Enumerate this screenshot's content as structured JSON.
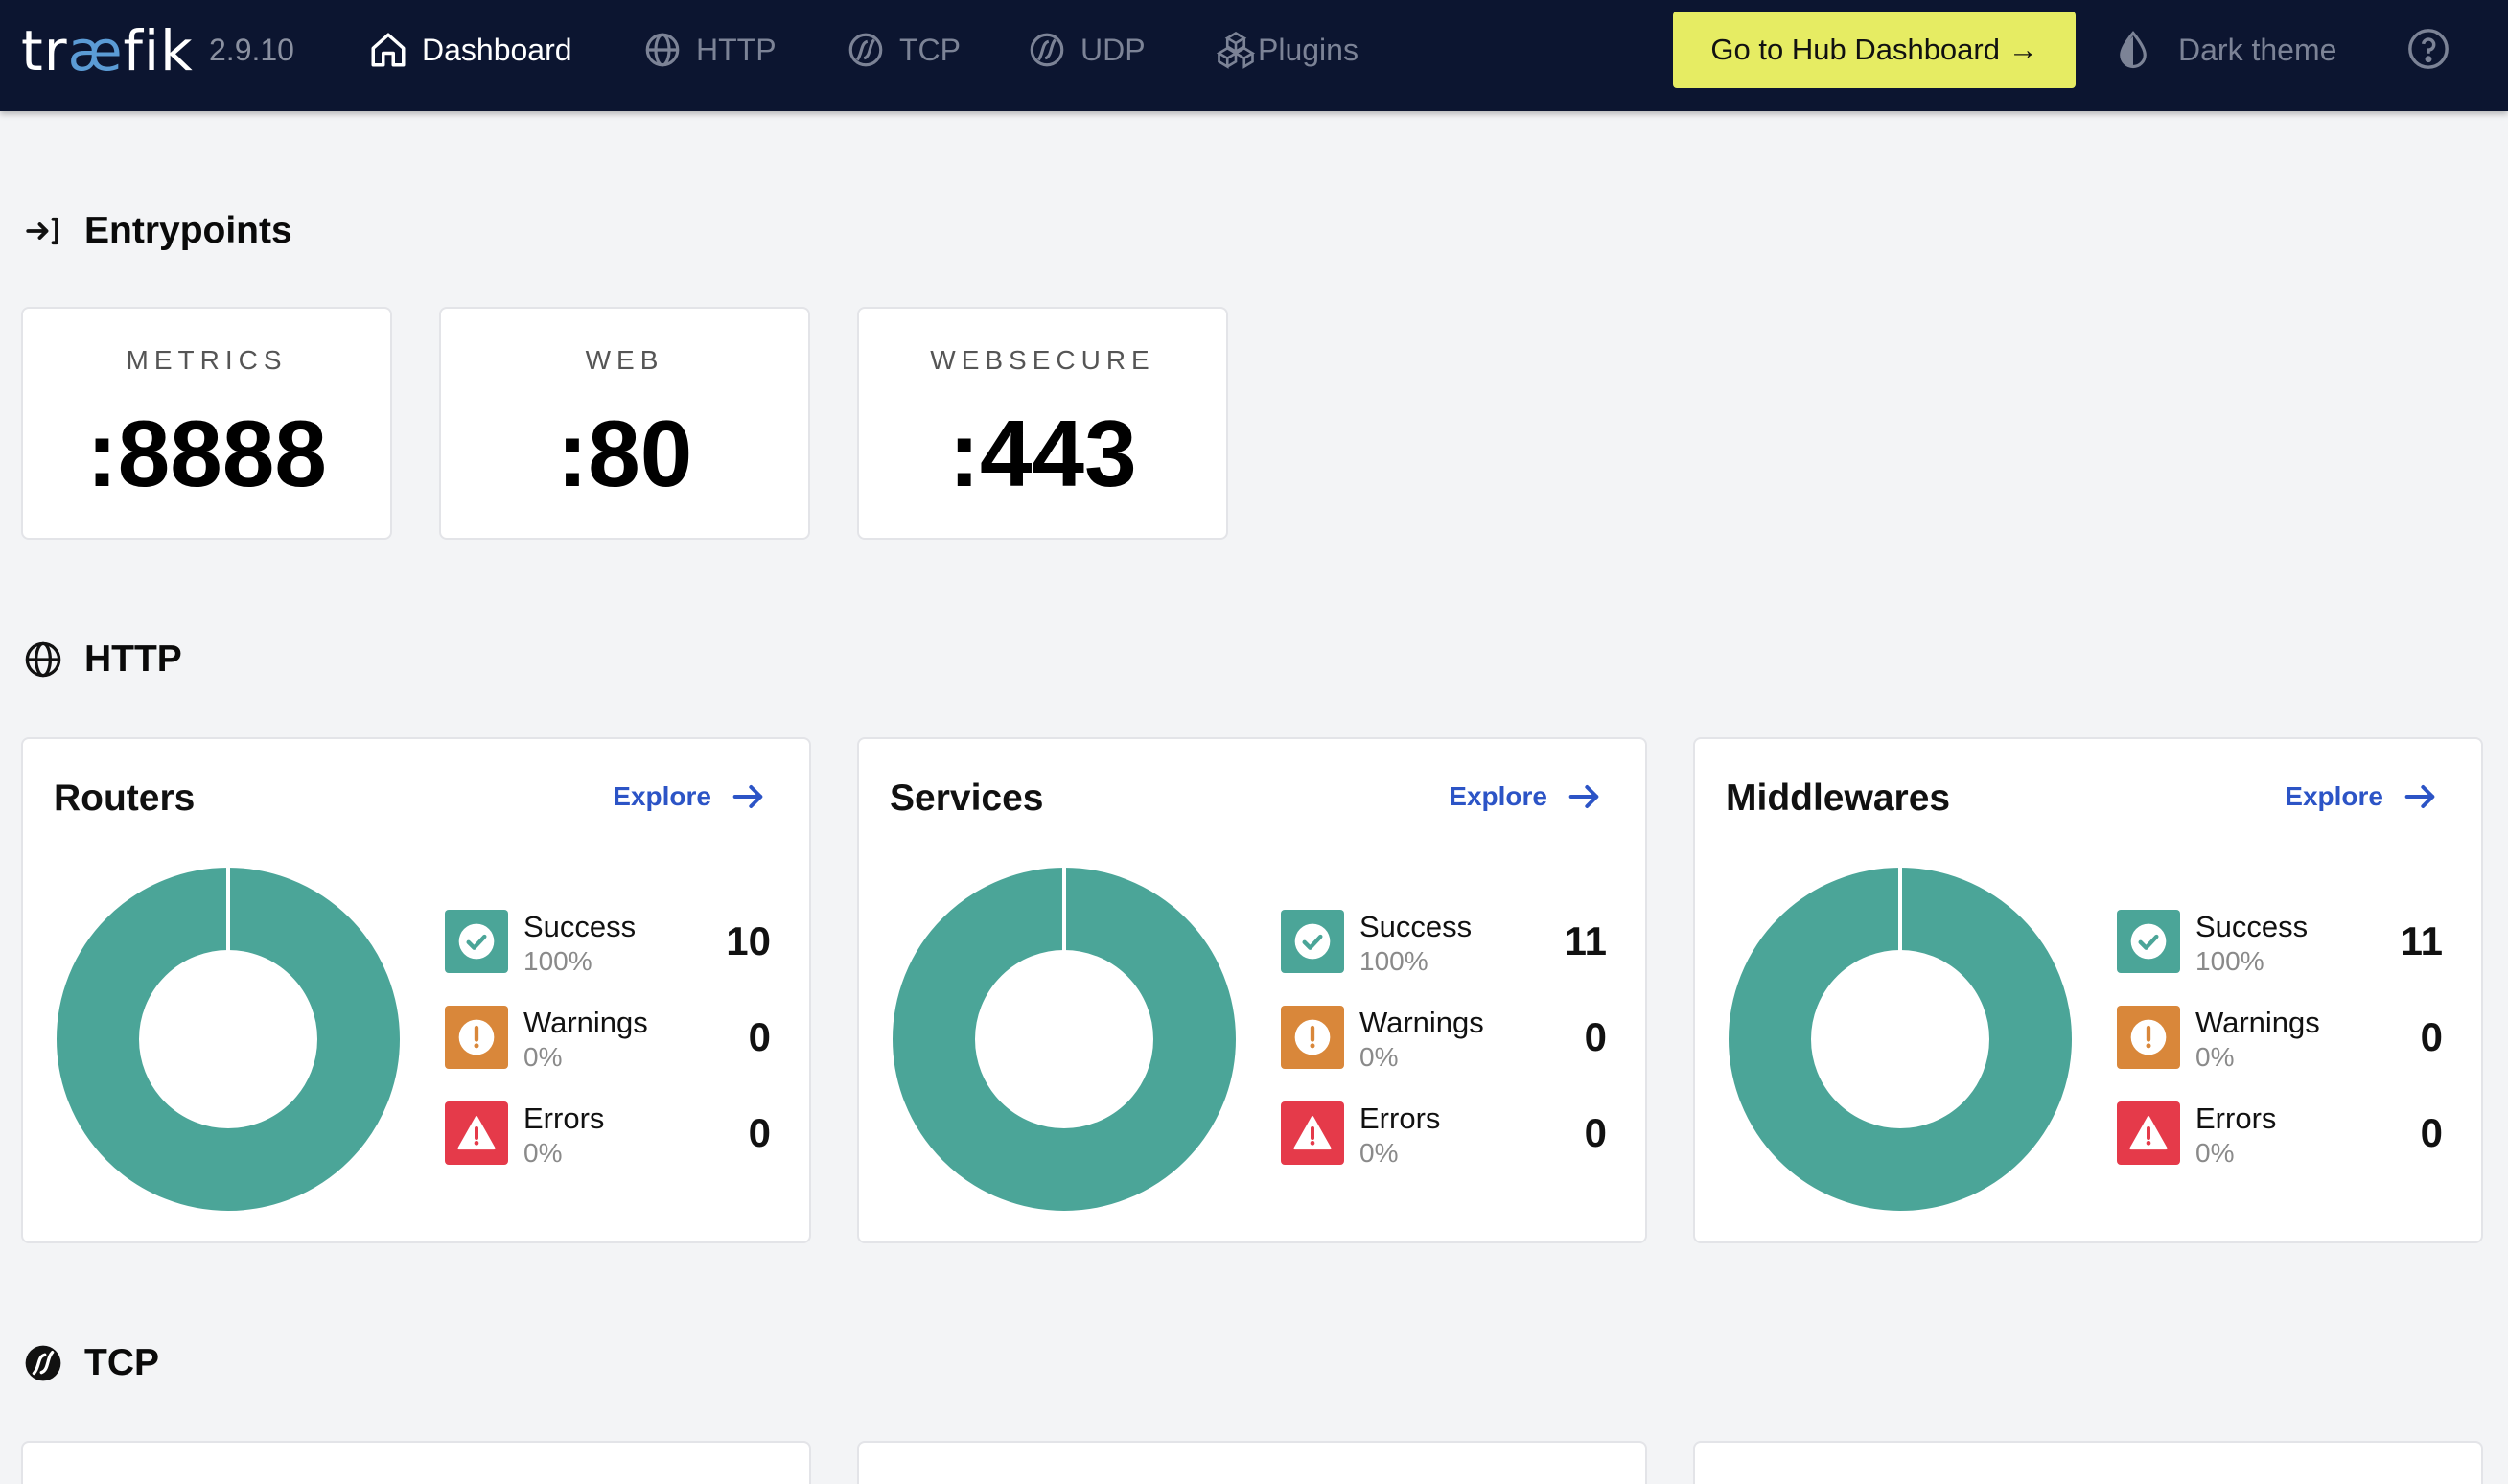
{
  "topbar": {
    "logo_text": "tr",
    "logo_ae": "æ",
    "logo_tail": "fik",
    "version": "2.9.10",
    "nav": [
      {
        "label": "Dashboard",
        "icon": "home-icon",
        "active": true
      },
      {
        "label": "HTTP",
        "icon": "globe-icon",
        "active": false
      },
      {
        "label": "TCP",
        "icon": "tcp-icon",
        "active": false
      },
      {
        "label": "UDP",
        "icon": "udp-icon",
        "active": false
      },
      {
        "label": "Plugins",
        "icon": "plugins-icon",
        "active": false
      }
    ],
    "hub_button": "Go to Hub Dashboard →",
    "theme_label": "Dark theme",
    "help_icon": "help-icon"
  },
  "entrypoints": {
    "title": "Entrypoints",
    "cards": [
      {
        "name": "METRICS",
        "port": ":8888"
      },
      {
        "name": "WEB",
        "port": ":80"
      },
      {
        "name": "WEBSECURE",
        "port": ":443"
      }
    ]
  },
  "http": {
    "title": "HTTP",
    "cards": [
      {
        "title": "Routers",
        "explore": "Explore",
        "success": {
          "label": "Success",
          "pct": "100%",
          "count": "10"
        },
        "warnings": {
          "label": "Warnings",
          "pct": "0%",
          "count": "0"
        },
        "errors": {
          "label": "Errors",
          "pct": "0%",
          "count": "0"
        }
      },
      {
        "title": "Services",
        "explore": "Explore",
        "success": {
          "label": "Success",
          "pct": "100%",
          "count": "11"
        },
        "warnings": {
          "label": "Warnings",
          "pct": "0%",
          "count": "0"
        },
        "errors": {
          "label": "Errors",
          "pct": "0%",
          "count": "0"
        }
      },
      {
        "title": "Middlewares",
        "explore": "Explore",
        "success": {
          "label": "Success",
          "pct": "100%",
          "count": "11"
        },
        "warnings": {
          "label": "Warnings",
          "pct": "0%",
          "count": "0"
        },
        "errors": {
          "label": "Errors",
          "pct": "0%",
          "count": "0"
        }
      }
    ]
  },
  "tcp": {
    "title": "TCP"
  },
  "colors": {
    "topbar": "#0c1530",
    "accent_yellow": "#e6ec63",
    "success": "#4ba598",
    "warning": "#d9873a",
    "error": "#e53a4a",
    "link": "#2c54c6"
  }
}
